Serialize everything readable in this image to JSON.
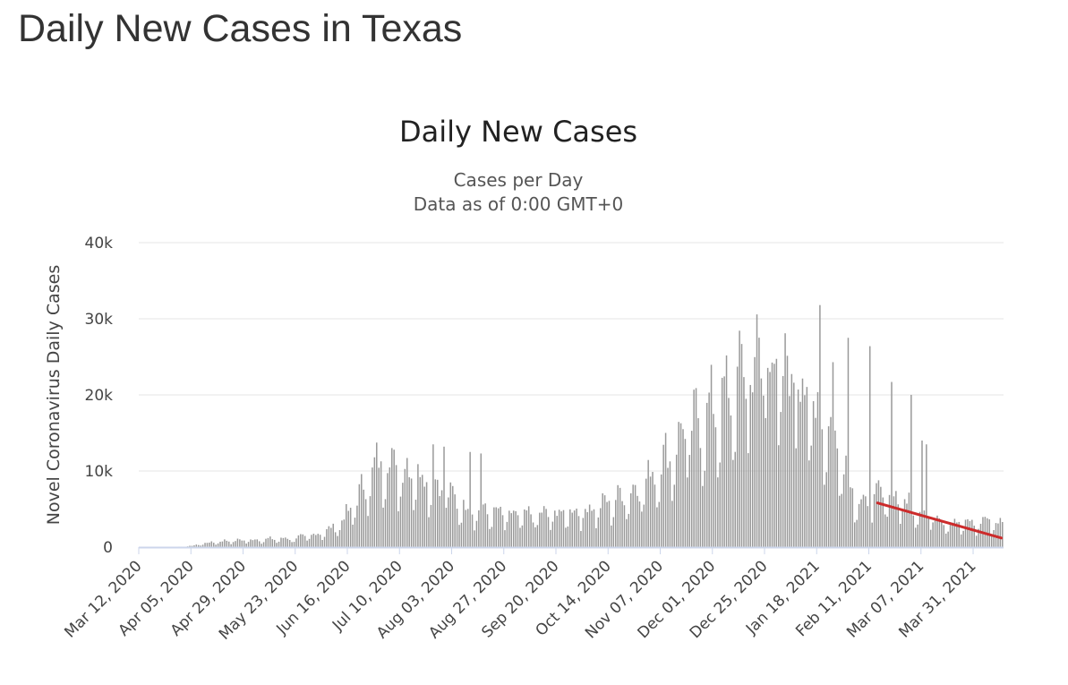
{
  "page": {
    "title": "Daily New Cases in Texas"
  },
  "colors": {
    "bar": "#999999",
    "bar_stroke": "#8a8a8a",
    "grid": "#e6e6e6",
    "axis": "#ccd6eb",
    "trend": "#cc2b2b"
  },
  "chart_data": {
    "type": "bar",
    "title": "Daily New Cases",
    "subtitle_lines": [
      "Cases per Day",
      "Data as of 0:00 GMT+0"
    ],
    "xlabel": "",
    "ylabel": "Novel Coronavirus Daily Cases",
    "ylim": [
      0,
      40000
    ],
    "yticks": [
      0,
      10000,
      20000,
      30000,
      40000
    ],
    "ytick_labels": [
      "0",
      "10k",
      "20k",
      "30k",
      "40k"
    ],
    "x_start": "Mar 12, 2020",
    "num_days": 398,
    "xtick_labels": [
      "Mar 12, 2020",
      "Apr 05, 2020",
      "Apr 29, 2020",
      "May 23, 2020",
      "Jun 16, 2020",
      "Jul 10, 2020",
      "Aug 03, 2020",
      "Aug 27, 2020",
      "Sep 20, 2020",
      "Oct 14, 2020",
      "Nov 07, 2020",
      "Dec 01, 2020",
      "Dec 25, 2020",
      "Jan 18, 2021",
      "Feb 11, 2021",
      "Mar 07, 2021",
      "Mar 31, 2021"
    ],
    "xtick_interval_days": 24,
    "trend_anchors": [
      [
        0,
        5
      ],
      [
        10,
        8
      ],
      [
        20,
        60
      ],
      [
        25,
        200
      ],
      [
        30,
        500
      ],
      [
        40,
        800
      ],
      [
        50,
        900
      ],
      [
        60,
        1000
      ],
      [
        70,
        1100
      ],
      [
        80,
        1500
      ],
      [
        90,
        2500
      ],
      [
        95,
        4000
      ],
      [
        100,
        6000
      ],
      [
        105,
        8500
      ],
      [
        110,
        10500
      ],
      [
        115,
        11000
      ],
      [
        120,
        9500
      ],
      [
        125,
        10000
      ],
      [
        130,
        9000
      ],
      [
        135,
        8000
      ],
      [
        140,
        7000
      ],
      [
        145,
        6000
      ],
      [
        150,
        5000
      ],
      [
        160,
        4500
      ],
      [
        170,
        4000
      ],
      [
        180,
        4000
      ],
      [
        190,
        4200
      ],
      [
        200,
        4500
      ],
      [
        210,
        5000
      ],
      [
        220,
        6200
      ],
      [
        230,
        7500
      ],
      [
        235,
        9000
      ],
      [
        240,
        10500
      ],
      [
        245,
        12000
      ],
      [
        250,
        14000
      ],
      [
        255,
        15500
      ],
      [
        260,
        16500
      ],
      [
        265,
        17500
      ],
      [
        270,
        19000
      ],
      [
        275,
        21000
      ],
      [
        280,
        22000
      ],
      [
        285,
        23000
      ],
      [
        290,
        23500
      ],
      [
        295,
        22000
      ],
      [
        300,
        21000
      ],
      [
        305,
        19500
      ],
      [
        310,
        18000
      ],
      [
        315,
        16000
      ],
      [
        320,
        13500
      ],
      [
        325,
        10500
      ],
      [
        330,
        6000
      ],
      [
        335,
        5000
      ],
      [
        340,
        6500
      ],
      [
        345,
        7000
      ],
      [
        350,
        6000
      ],
      [
        355,
        5500
      ],
      [
        360,
        4500
      ],
      [
        365,
        4000
      ],
      [
        370,
        3500
      ],
      [
        375,
        3200
      ],
      [
        380,
        3000
      ],
      [
        385,
        3000
      ],
      [
        390,
        3500
      ],
      [
        397,
        2800
      ]
    ],
    "spikes": [
      [
        135,
        13500
      ],
      [
        140,
        13200
      ],
      [
        152,
        12500
      ],
      [
        157,
        12300
      ],
      [
        250,
        15500
      ],
      [
        262,
        20300
      ],
      [
        271,
        19600
      ],
      [
        281,
        21300
      ],
      [
        287,
        19900
      ],
      [
        301,
        21600
      ],
      [
        303,
        20700
      ],
      [
        313,
        31800
      ],
      [
        319,
        24300
      ],
      [
        326,
        27500
      ],
      [
        336,
        26400
      ],
      [
        346,
        21700
      ],
      [
        355,
        20000
      ],
      [
        360,
        14000
      ],
      [
        362,
        13500
      ]
    ],
    "trend_line": {
      "x": [
        340,
        397
      ],
      "y": [
        5800,
        1200
      ]
    }
  }
}
